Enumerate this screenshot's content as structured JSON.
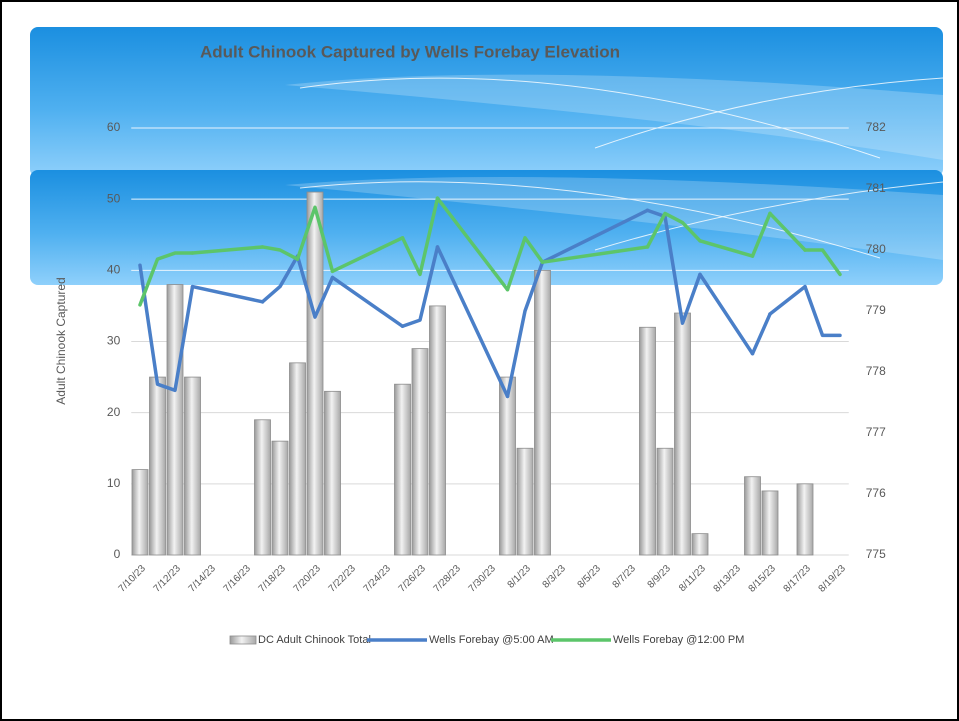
{
  "chart_data": {
    "type": "combo",
    "title": "Adult Chinook Captured by Wells Forebay Elevation",
    "y_label": "Adult Chinook Captured",
    "categories": [
      "7/10/23",
      null,
      "7/12/23",
      null,
      "7/14/23",
      null,
      "7/16/23",
      null,
      "7/18/23",
      null,
      "7/20/23",
      null,
      "7/22/23",
      null,
      "7/24/23",
      null,
      "7/26/23",
      null,
      "7/28/23",
      null,
      "7/30/23",
      null,
      "8/1/23",
      null,
      "8/3/23",
      null,
      "8/5/23",
      null,
      "8/7/23",
      null,
      "8/9/23",
      null,
      "8/11/23",
      null,
      "8/13/23",
      null,
      "8/15/23",
      null,
      "8/17/23",
      null,
      "8/19/23"
    ],
    "series": [
      {
        "name": "DC Adult Chinook Total",
        "type": "bar",
        "color": "#c9c9c9",
        "values": [
          12,
          25,
          38,
          25,
          null,
          null,
          null,
          19,
          16,
          27,
          51,
          23,
          null,
          null,
          null,
          24,
          29,
          35,
          null,
          null,
          null,
          25,
          15,
          40,
          null,
          null,
          null,
          null,
          null,
          32,
          15,
          34,
          3,
          null,
          null,
          11,
          9,
          null,
          10,
          null,
          null
        ]
      },
      {
        "name": "Wells Forebay @5:00 AM",
        "type": "line",
        "axis": "y2",
        "color": "#4a7fc8",
        "values": [
          779.75,
          777.8,
          777.7,
          779.4,
          null,
          null,
          null,
          779.15,
          779.4,
          779.9,
          778.9,
          779.55,
          null,
          null,
          null,
          778.75,
          778.85,
          780.05,
          null,
          null,
          null,
          777.6,
          779.0,
          779.8,
          null,
          null,
          null,
          null,
          null,
          780.65,
          780.55,
          778.8,
          779.6,
          null,
          null,
          778.3,
          778.95,
          null,
          779.4,
          778.6,
          778.6
        ]
      },
      {
        "name": "Wells Forebay @12:00 PM",
        "type": "line",
        "axis": "y2",
        "color": "#5cc56a",
        "values": [
          779.1,
          779.85,
          779.95,
          779.95,
          null,
          null,
          null,
          780.05,
          780.0,
          779.85,
          780.7,
          779.65,
          null,
          null,
          null,
          780.2,
          779.6,
          780.85,
          null,
          null,
          null,
          779.35,
          780.2,
          779.8,
          null,
          null,
          null,
          null,
          null,
          780.05,
          780.6,
          780.45,
          780.15,
          null,
          null,
          779.9,
          780.6,
          null,
          780.0,
          780.0,
          779.6
        ]
      }
    ],
    "ylim": [
      0,
      60
    ],
    "yticks": [
      0,
      10,
      20,
      30,
      40,
      50,
      60
    ],
    "y2lim": [
      775,
      782
    ],
    "y2ticks": [
      775,
      776,
      777,
      778,
      779,
      780,
      781,
      782
    ],
    "grid": true,
    "legend": "bottom",
    "span_gaps": true
  }
}
